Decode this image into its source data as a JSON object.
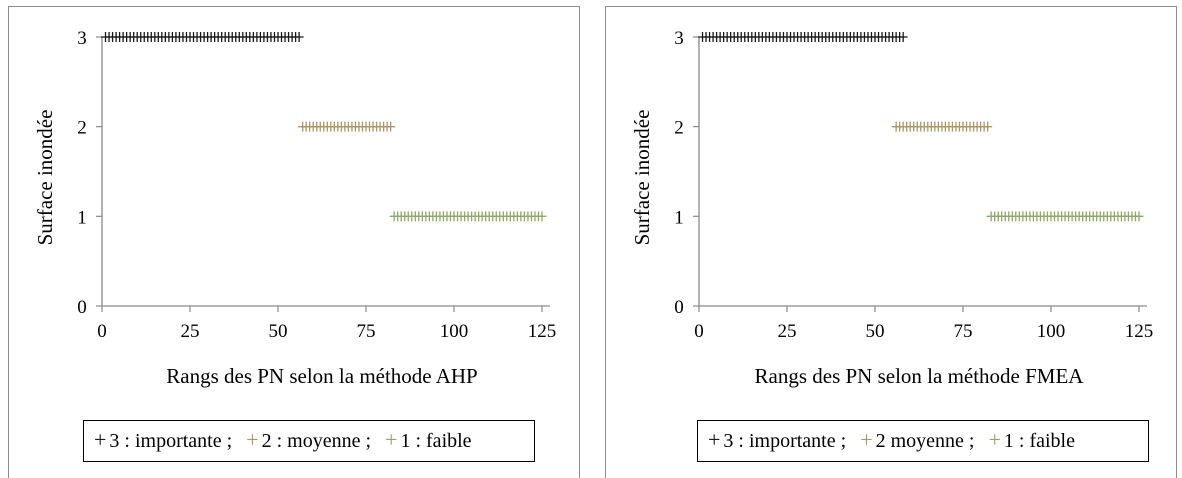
{
  "chart_data": [
    {
      "type": "scatter",
      "marker": "plus",
      "xlabel": "Rangs des PN selon la méthode AHP",
      "ylabel": "Surface inondée",
      "xlim": [
        0,
        125
      ],
      "ylim": [
        0,
        3
      ],
      "xticks": [
        "0",
        "25",
        "50",
        "75",
        "100",
        "125"
      ],
      "yticks": [
        "0",
        "1",
        "2",
        "3"
      ],
      "grid": false,
      "legend_position": "bottom",
      "series": [
        {
          "name": "3 : importante ;",
          "color": "#1a1a1a",
          "y": 3,
          "x_from": 1,
          "x_to": 56
        },
        {
          "name": "2 : moyenne ;",
          "color": "#a89868",
          "y": 2,
          "x_from": 57,
          "x_to": 82
        },
        {
          "name": "1 : faible",
          "color": "#8fa866",
          "y": 1,
          "x_from": 83,
          "x_to": 125
        }
      ]
    },
    {
      "type": "scatter",
      "marker": "plus",
      "xlabel": "Rangs des PN selon la méthode FMEA",
      "ylabel": "Surface inondée",
      "xlim": [
        0,
        125
      ],
      "ylim": [
        0,
        3
      ],
      "xticks": [
        "0",
        "25",
        "50",
        "75",
        "100",
        "125"
      ],
      "yticks": [
        "0",
        "1",
        "2",
        "3"
      ],
      "grid": false,
      "legend_position": "bottom",
      "series": [
        {
          "name": "3 : importante ;",
          "color": "#1a1a1a",
          "y": 3,
          "x_from": 1,
          "x_to": 58
        },
        {
          "name": "2 moyenne ;",
          "color": "#a89868",
          "y": 2,
          "x_from": 56,
          "x_to": 82
        },
        {
          "name": "1 : faible",
          "color": "#8fa866",
          "y": 1,
          "x_from": 83,
          "x_to": 125
        }
      ]
    }
  ]
}
